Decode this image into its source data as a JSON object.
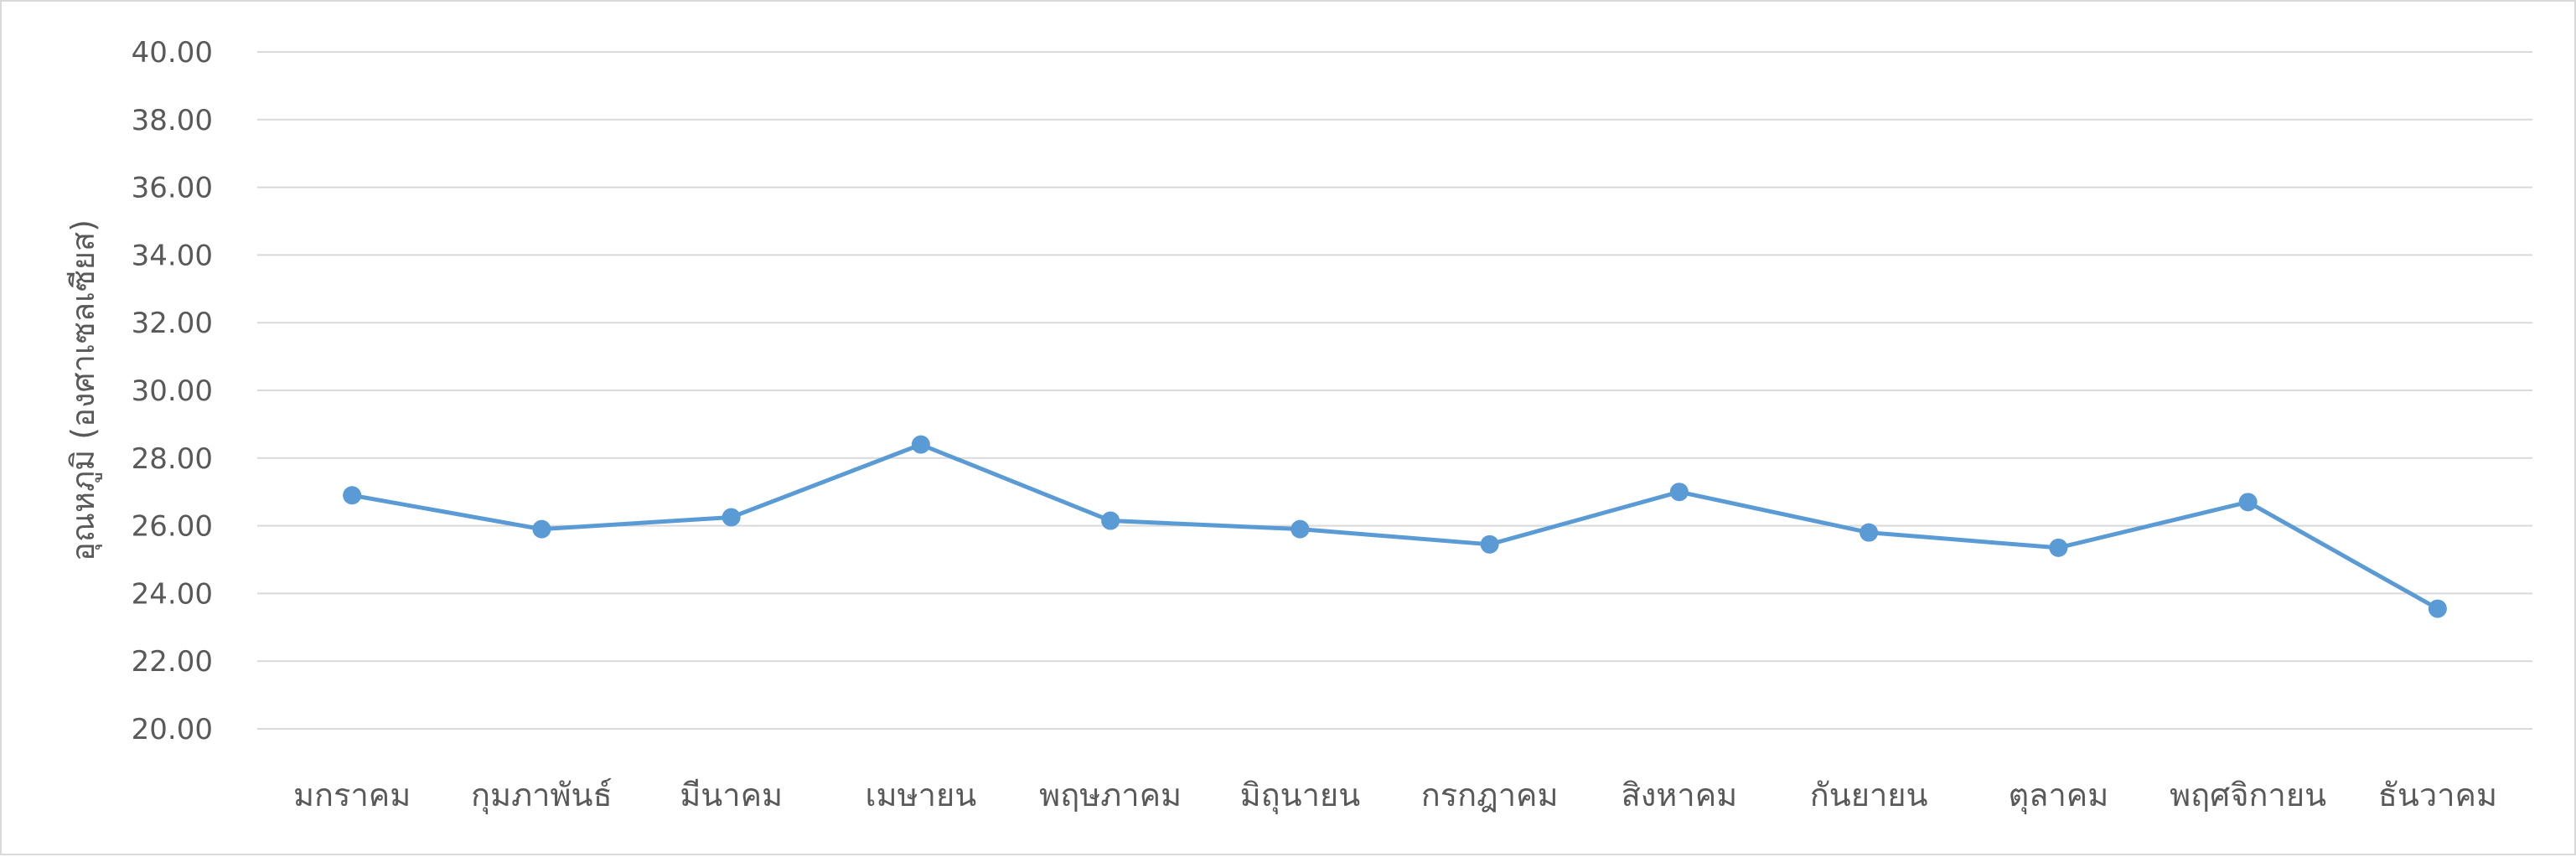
{
  "chart_data": {
    "type": "line",
    "title": "",
    "xlabel": "",
    "ylabel": "อุณหภูมิ (องศาเซลเซียส)",
    "ylim": [
      20,
      40
    ],
    "ytick_step": 2,
    "ytick_decimals": 2,
    "grid": true,
    "legend": "none",
    "categories": [
      "มกราคม",
      "กุมภาพันธ์",
      "มีนาคม",
      "เมษายน",
      "พฤษภาคม",
      "มิถุนายน",
      "กรกฎาคม",
      "สิงหาคม",
      "กันยายน",
      "ตุลาคม",
      "พฤศจิกายน",
      "ธันวาคม"
    ],
    "series": [
      {
        "values": [
          26.9,
          25.9,
          26.25,
          28.4,
          26.15,
          25.9,
          25.45,
          27.0,
          25.8,
          25.35,
          26.7,
          23.55
        ]
      }
    ],
    "colors": {
      "line": "#5b9bd5",
      "grid": "#d9d9d9",
      "text": "#595959"
    }
  }
}
